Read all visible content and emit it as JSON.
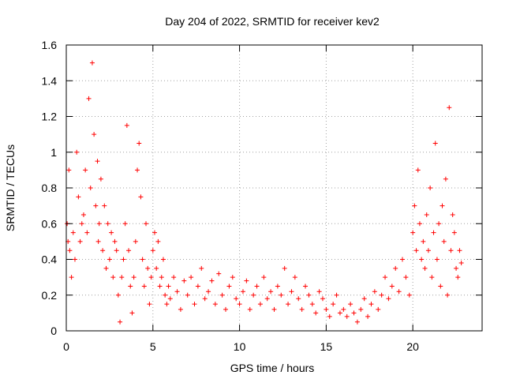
{
  "chart_data": {
    "type": "scatter",
    "title": "Day 204 of 2022, SRMTID for receiver kev2",
    "xlabel": "GPS time / hours",
    "ylabel": "SRMTID / TECUs",
    "xlim": [
      0,
      24
    ],
    "ylim": [
      0,
      1.6
    ],
    "xticks": [
      0,
      5,
      10,
      15,
      20
    ],
    "yticks": [
      0,
      0.2,
      0.4,
      0.6,
      0.8,
      1,
      1.2,
      1.4,
      1.6
    ],
    "xtick_labels": [
      "0",
      "5",
      "10",
      "15",
      "20"
    ],
    "ytick_labels": [
      "0",
      "0.2",
      "0.4",
      "0.6",
      "0.8",
      "1",
      "1.2",
      "1.4",
      "1.6"
    ],
    "grid": true,
    "marker": "+",
    "series_color": "#ff0000",
    "series": [
      {
        "name": "SRMTID",
        "x": [
          0.05,
          0.1,
          0.15,
          0.2,
          0.3,
          0.4,
          0.5,
          0.6,
          0.7,
          0.8,
          0.9,
          1.0,
          1.1,
          1.2,
          1.3,
          1.4,
          1.5,
          1.6,
          1.7,
          1.8,
          1.85,
          1.9,
          2.0,
          2.1,
          2.2,
          2.3,
          2.4,
          2.5,
          2.6,
          2.7,
          2.8,
          2.9,
          3.0,
          3.1,
          3.2,
          3.3,
          3.4,
          3.5,
          3.6,
          3.7,
          3.8,
          3.9,
          4.0,
          4.1,
          4.2,
          4.3,
          4.4,
          4.5,
          4.6,
          4.7,
          4.8,
          4.9,
          5.0,
          5.1,
          5.2,
          5.3,
          5.4,
          5.5,
          5.6,
          5.7,
          5.8,
          5.9,
          6.0,
          6.2,
          6.4,
          6.6,
          6.8,
          7.0,
          7.2,
          7.4,
          7.6,
          7.8,
          8.0,
          8.2,
          8.4,
          8.6,
          8.8,
          9.0,
          9.2,
          9.4,
          9.6,
          9.8,
          10.0,
          10.2,
          10.4,
          10.6,
          10.8,
          11.0,
          11.2,
          11.4,
          11.6,
          11.8,
          12.0,
          12.2,
          12.4,
          12.6,
          12.8,
          13.0,
          13.2,
          13.4,
          13.6,
          13.8,
          14.0,
          14.2,
          14.4,
          14.6,
          14.8,
          15.0,
          15.2,
          15.4,
          15.6,
          15.8,
          16.0,
          16.2,
          16.4,
          16.6,
          16.8,
          17.0,
          17.2,
          17.4,
          17.6,
          17.8,
          18.0,
          18.2,
          18.4,
          18.6,
          18.8,
          19.0,
          19.2,
          19.4,
          19.6,
          19.8,
          20.0,
          20.1,
          20.2,
          20.3,
          20.4,
          20.5,
          20.6,
          20.7,
          20.8,
          20.9,
          21.0,
          21.1,
          21.2,
          21.3,
          21.4,
          21.5,
          21.6,
          21.7,
          21.8,
          21.9,
          22.0,
          22.1,
          22.2,
          22.3,
          22.4,
          22.5,
          22.6,
          22.7,
          22.8
        ],
        "y": [
          0.6,
          0.5,
          0.9,
          0.45,
          0.3,
          0.55,
          0.4,
          1.0,
          0.75,
          0.5,
          0.6,
          0.65,
          0.9,
          0.55,
          1.3,
          0.8,
          1.5,
          1.1,
          0.7,
          0.95,
          0.5,
          0.6,
          0.85,
          0.45,
          0.7,
          0.35,
          0.6,
          0.4,
          0.55,
          0.3,
          0.5,
          0.45,
          0.2,
          0.05,
          0.3,
          0.4,
          0.6,
          1.15,
          0.45,
          0.25,
          0.1,
          0.3,
          0.5,
          0.9,
          1.05,
          0.75,
          0.4,
          0.25,
          0.6,
          0.35,
          0.15,
          0.3,
          0.45,
          0.55,
          0.35,
          0.5,
          0.25,
          0.3,
          0.4,
          0.2,
          0.15,
          0.25,
          0.18,
          0.3,
          0.22,
          0.12,
          0.28,
          0.2,
          0.3,
          0.15,
          0.25,
          0.35,
          0.18,
          0.22,
          0.28,
          0.15,
          0.32,
          0.2,
          0.12,
          0.25,
          0.3,
          0.18,
          0.15,
          0.22,
          0.28,
          0.12,
          0.2,
          0.25,
          0.15,
          0.3,
          0.18,
          0.22,
          0.12,
          0.25,
          0.2,
          0.35,
          0.15,
          0.22,
          0.3,
          0.18,
          0.12,
          0.25,
          0.2,
          0.15,
          0.1,
          0.22,
          0.18,
          0.12,
          0.08,
          0.15,
          0.2,
          0.1,
          0.12,
          0.08,
          0.15,
          0.1,
          0.05,
          0.12,
          0.18,
          0.08,
          0.15,
          0.22,
          0.12,
          0.2,
          0.3,
          0.18,
          0.25,
          0.35,
          0.22,
          0.4,
          0.3,
          0.2,
          0.55,
          0.7,
          0.45,
          0.9,
          0.6,
          0.4,
          0.5,
          0.35,
          0.65,
          0.45,
          0.8,
          0.3,
          0.55,
          1.05,
          0.4,
          0.6,
          0.25,
          0.7,
          0.5,
          0.85,
          0.2,
          1.25,
          0.45,
          0.65,
          0.55,
          0.35,
          0.3,
          0.45,
          0.38
        ]
      }
    ]
  }
}
